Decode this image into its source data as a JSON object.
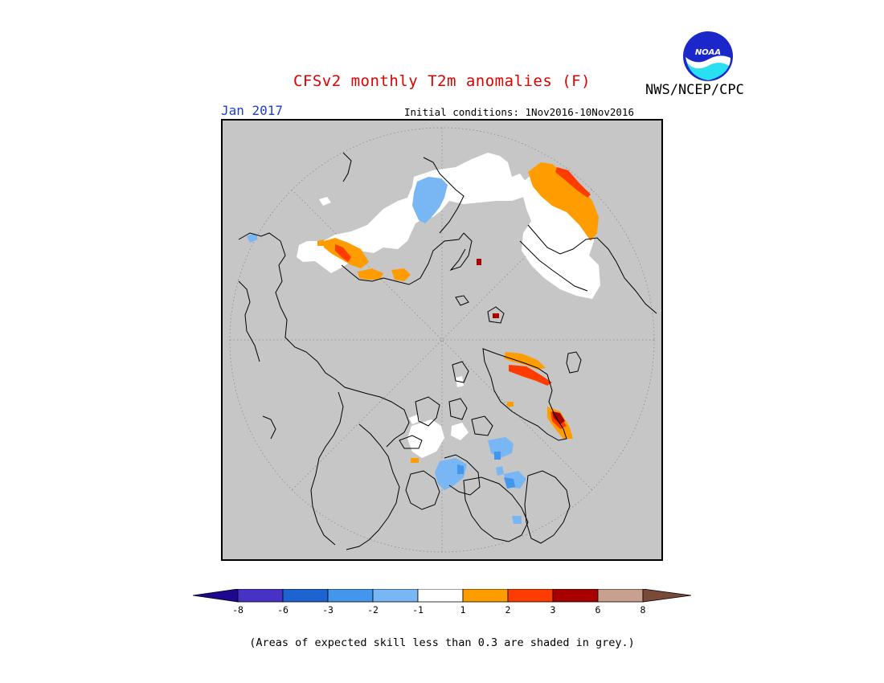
{
  "title": "CFSv2 monthly T2m anomalies (F)",
  "agency": "NWS/NCEP/CPC",
  "logo_text": "NOAA",
  "target_month": "Jan 2017",
  "initial_conditions": "Initial conditions: 1Nov2016-10Nov2016",
  "footnote": "(Areas of expected skill less than 0.3 are shaded in grey.)",
  "colors": {
    "title": "#e00000",
    "month": "#1d3fd0",
    "low_skill_grey": "#c6c6c6"
  },
  "colorbar": {
    "labels": [
      "-8",
      "-6",
      "-3",
      "-2",
      "-1",
      "1",
      "2",
      "3",
      "6",
      "8"
    ],
    "colors": [
      "#1e0890",
      "#4633c6",
      "#1e63d2",
      "#4296ec",
      "#78b6f4",
      "#ffffff",
      "#ff9d00",
      "#ff3c00",
      "#a80000",
      "#c9a08f",
      "#7a4a38"
    ]
  }
}
